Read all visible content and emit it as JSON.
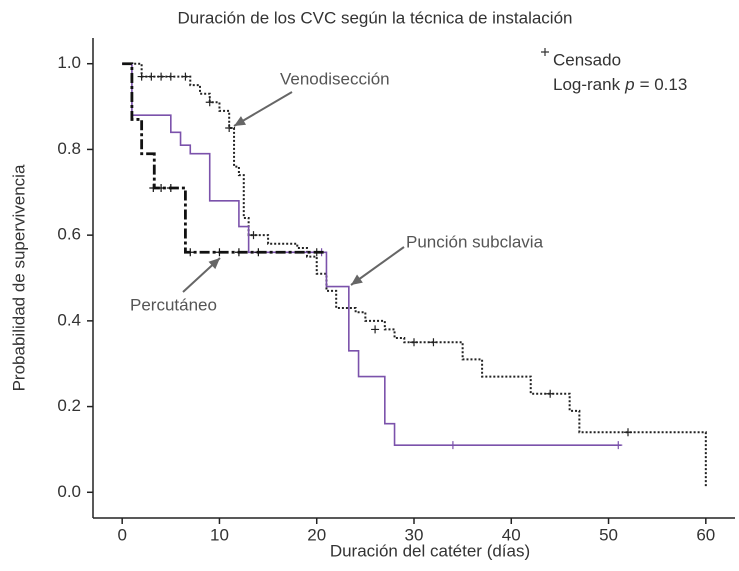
{
  "chart_data": {
    "type": "step",
    "title": "Duración de los CVC según la técnica de instalación",
    "x_label": "Duración del catéter (días)",
    "y_label": "Probabilidad de supervivencia",
    "xlim": [
      -3,
      63
    ],
    "xticks": [
      0,
      10,
      20,
      30,
      40,
      50,
      60
    ],
    "ylim": [
      -0.06,
      1.06
    ],
    "yticks": [
      {
        "value": 0,
        "label": "0.0"
      },
      {
        "value": 0.2,
        "label": "0.2"
      },
      {
        "value": 0.4,
        "label": "0.4"
      },
      {
        "value": 0.6,
        "label": "0.6"
      },
      {
        "value": 0.8,
        "label": "0.8"
      },
      {
        "value": 1,
        "label": "1.0"
      }
    ],
    "censor_label": "Censado",
    "logrank": {
      "pre": "Log-rank",
      "italic": "p",
      "post": "= 0.13"
    },
    "series": [
      {
        "name": "Venodisección",
        "color": "#222222",
        "style": "dotted",
        "x": [
          0,
          2,
          7,
          8,
          9,
          10,
          11,
          11.5,
          12,
          12.5,
          13,
          15,
          18,
          19,
          20,
          21,
          22,
          24,
          25,
          27,
          28,
          29,
          35,
          37,
          42,
          46,
          47,
          60
        ],
        "values": [
          1.0,
          0.97,
          0.95,
          0.93,
          0.91,
          0.89,
          0.85,
          0.76,
          0.74,
          0.64,
          0.6,
          0.58,
          0.57,
          0.55,
          0.51,
          0.47,
          0.43,
          0.42,
          0.4,
          0.38,
          0.36,
          0.35,
          0.31,
          0.27,
          0.23,
          0.19,
          0.14,
          0.01
        ],
        "censor_x": [
          2,
          3,
          4,
          5,
          6.5,
          9,
          11,
          13.5,
          20,
          26,
          30,
          32,
          44,
          52
        ],
        "censor_values": [
          0.97,
          0.97,
          0.97,
          0.97,
          0.97,
          0.91,
          0.85,
          0.6,
          0.56,
          0.38,
          0.35,
          0.35,
          0.23,
          0.14
        ]
      },
      {
        "name": "Punción subclavia",
        "color": "#7b52ab",
        "style": "solid",
        "x": [
          0,
          1,
          5,
          6,
          7,
          9,
          12,
          13,
          21,
          23.3,
          24.3,
          27,
          28,
          51.3
        ],
        "values": [
          1.0,
          0.88,
          0.84,
          0.81,
          0.79,
          0.68,
          0.62,
          0.56,
          0.48,
          0.33,
          0.27,
          0.16,
          0.11,
          0.11
        ],
        "censor_x": [
          20.5,
          34,
          51
        ],
        "censor_values": [
          0.56,
          0.11,
          0.11
        ]
      },
      {
        "name": "Percutáneo",
        "color": "#111111",
        "style": "dashdot",
        "x": [
          0,
          1,
          2,
          3.3,
          6.5,
          21
        ],
        "values": [
          1.0,
          0.87,
          0.79,
          0.71,
          0.56,
          0.56
        ],
        "censor_x": [
          3.2,
          4,
          5,
          7,
          10,
          12,
          14
        ],
        "censor_values": [
          0.71,
          0.71,
          0.71,
          0.56,
          0.56,
          0.56,
          0.56
        ]
      }
    ]
  }
}
